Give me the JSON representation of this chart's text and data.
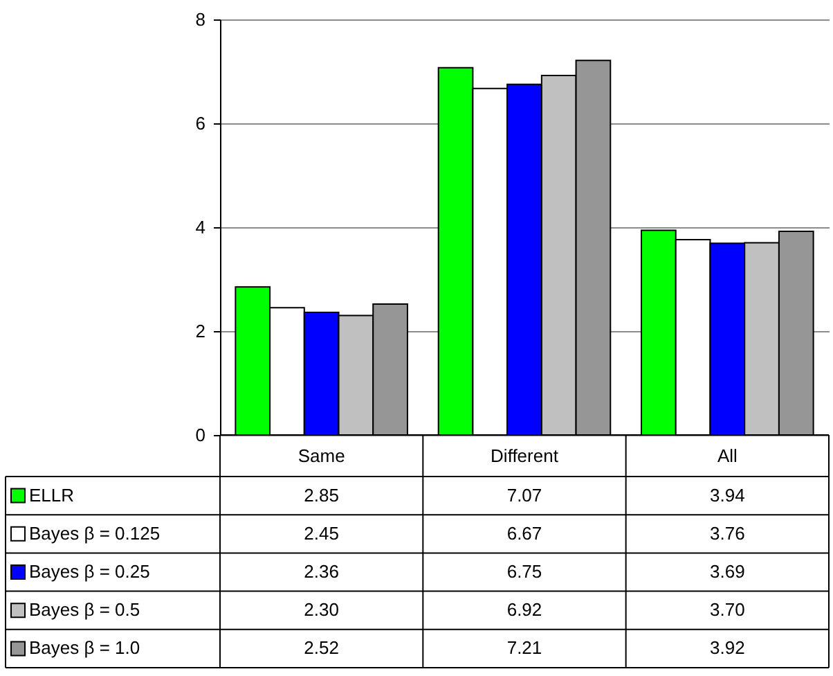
{
  "chart_data": {
    "type": "bar",
    "categories": [
      "Same",
      "Different",
      "All"
    ],
    "series": [
      {
        "name": "ELLR",
        "color": "#00ff00",
        "values": [
          2.85,
          7.07,
          3.94
        ],
        "value_labels": [
          "2.85",
          "7.07",
          "3.94"
        ]
      },
      {
        "name": "Bayes β = 0.125",
        "color": "#ffffff",
        "values": [
          2.45,
          6.67,
          3.76
        ],
        "value_labels": [
          "2.45",
          "6.67",
          "3.76"
        ]
      },
      {
        "name": "Bayes β = 0.25",
        "color": "#0000ff",
        "values": [
          2.36,
          6.75,
          3.69
        ],
        "value_labels": [
          "2.36",
          "6.75",
          "3.69"
        ]
      },
      {
        "name": "Bayes β = 0.5",
        "color": "#c0c0c0",
        "values": [
          2.3,
          6.92,
          3.7
        ],
        "value_labels": [
          "2.30",
          "6.92",
          "3.70"
        ]
      },
      {
        "name": "Bayes β = 1.0",
        "color": "#969696",
        "values": [
          2.52,
          7.21,
          3.92
        ],
        "value_labels": [
          "2.52",
          "7.21",
          "3.92"
        ]
      }
    ],
    "ylim": [
      0,
      8
    ],
    "yticks": [
      0,
      2,
      4,
      6,
      8
    ],
    "grid": "y",
    "legend": "bottom"
  }
}
